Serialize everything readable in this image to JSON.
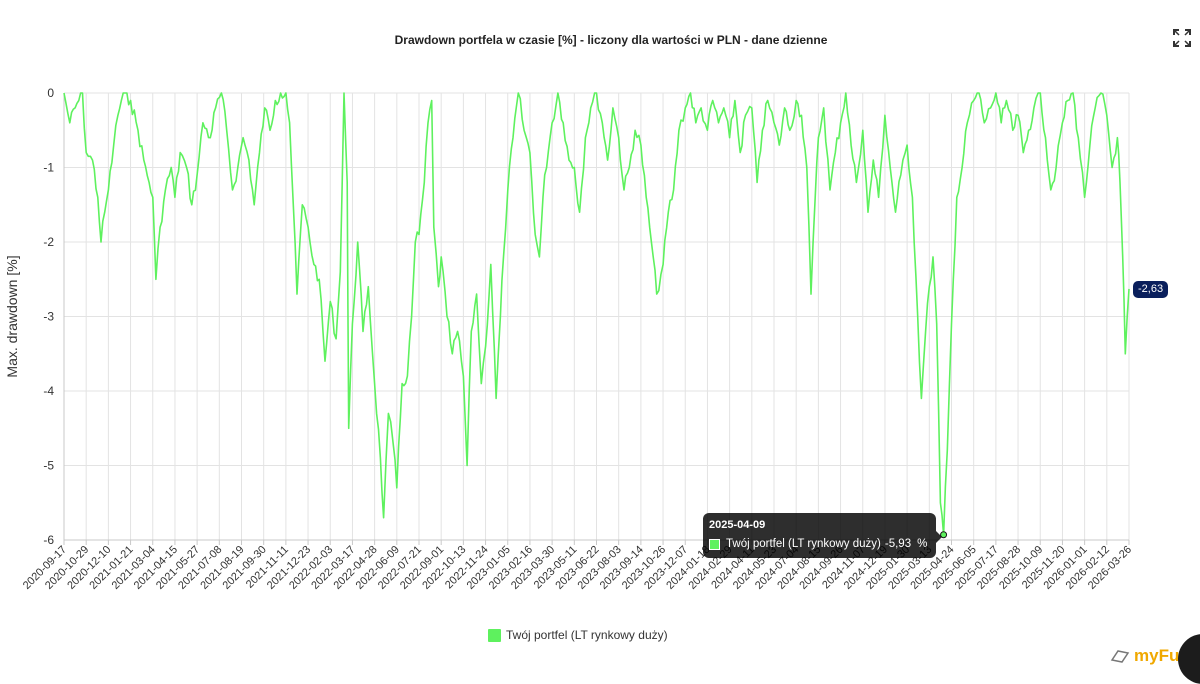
{
  "chart_data": {
    "type": "line",
    "title": "Drawdown portfela w czasie [%] - liczony dla wartości w PLN - dane dzienne",
    "ylabel": "Max. drawdown [%]",
    "xlabel": "",
    "ylim": [
      -6,
      0
    ],
    "yticks": [
      "0",
      "-1",
      "-2",
      "-3",
      "-4",
      "-5",
      "-6"
    ],
    "grid": true,
    "legend_position": "bottom-center",
    "x_tick_labels": [
      "2020-09-17",
      "2020-10-29",
      "2020-12-10",
      "2021-01-21",
      "2021-03-04",
      "2021-04-15",
      "2021-05-27",
      "2021-07-08",
      "2021-08-19",
      "2021-09-30",
      "2021-11-11",
      "2021-12-23",
      "2022-02-03",
      "2022-03-17",
      "2022-04-28",
      "2022-06-09",
      "2022-07-21",
      "2022-09-01",
      "2022-10-13",
      "2022-11-24",
      "2023-01-05",
      "2023-02-16",
      "2023-03-30",
      "2023-05-11",
      "2023-06-22",
      "2023-08-03",
      "2023-09-14",
      "2023-10-26",
      "2023-12-07",
      "2024-01-18",
      "2024-02-29",
      "2024-04-11",
      "2024-05-23",
      "2024-07-04",
      "2024-08-15",
      "2024-09-26",
      "2024-11-07",
      "2024-12-19",
      "2025-01-30",
      "2025-03-13",
      "2025-04-24",
      "2025-06-05",
      "2025-07-17",
      "2025-08-28",
      "2025-10-09",
      "2025-11-20",
      "2026-01-01",
      "2026-02-12",
      "2026-03-26"
    ],
    "series": [
      {
        "name": "Twój portfel (LT rynkowy duży)",
        "color": "#5ef15e",
        "points": [
          [
            "2020-09-17",
            0
          ],
          [
            "2020-09-28",
            -0.4
          ],
          [
            "2020-10-08",
            -0.2
          ],
          [
            "2020-10-22",
            0
          ],
          [
            "2020-10-29",
            -0.8
          ],
          [
            "2020-11-10",
            -0.9
          ],
          [
            "2020-11-20",
            -1.4
          ],
          [
            "2020-11-26",
            -2.0
          ],
          [
            "2020-12-03",
            -1.6
          ],
          [
            "2020-12-10",
            -1.3
          ],
          [
            "2020-12-20",
            -0.7
          ],
          [
            "2020-12-28",
            -0.3
          ],
          [
            "2021-01-07",
            0
          ],
          [
            "2021-01-21",
            -0.1
          ],
          [
            "2021-02-04",
            -0.5
          ],
          [
            "2021-02-15",
            -0.9
          ],
          [
            "2021-02-25",
            -1.2
          ],
          [
            "2021-03-04",
            -1.4
          ],
          [
            "2021-03-10",
            -2.5
          ],
          [
            "2021-03-18",
            -1.8
          ],
          [
            "2021-03-28",
            -1.3
          ],
          [
            "2021-04-08",
            -1.0
          ],
          [
            "2021-04-15",
            -1.4
          ],
          [
            "2021-04-25",
            -0.8
          ],
          [
            "2021-05-07",
            -1.0
          ],
          [
            "2021-05-17",
            -1.5
          ],
          [
            "2021-05-27",
            -1.1
          ],
          [
            "2021-06-07",
            -0.4
          ],
          [
            "2021-06-21",
            -0.6
          ],
          [
            "2021-07-01",
            -0.2
          ],
          [
            "2021-07-12",
            0
          ],
          [
            "2021-07-22",
            -0.5
          ],
          [
            "2021-08-02",
            -1.3
          ],
          [
            "2021-08-12",
            -1.0
          ],
          [
            "2021-08-22",
            -0.6
          ],
          [
            "2021-09-02",
            -0.9
          ],
          [
            "2021-09-12",
            -1.5
          ],
          [
            "2021-09-22",
            -0.8
          ],
          [
            "2021-10-02",
            -0.2
          ],
          [
            "2021-10-12",
            -0.5
          ],
          [
            "2021-10-22",
            -0.1
          ],
          [
            "2021-11-01",
            0
          ],
          [
            "2021-11-11",
            0
          ],
          [
            "2021-11-18",
            -0.4
          ],
          [
            "2021-11-25",
            -1.5
          ],
          [
            "2021-12-02",
            -2.7
          ],
          [
            "2021-12-12",
            -1.5
          ],
          [
            "2021-12-23",
            -1.8
          ],
          [
            "2022-01-03",
            -2.3
          ],
          [
            "2022-01-13",
            -2.5
          ],
          [
            "2022-01-24",
            -3.6
          ],
          [
            "2022-02-03",
            -2.8
          ],
          [
            "2022-02-14",
            -3.3
          ],
          [
            "2022-02-22",
            -2.4
          ],
          [
            "2022-03-01",
            0
          ],
          [
            "2022-03-07",
            -1.2
          ],
          [
            "2022-03-10",
            -4.5
          ],
          [
            "2022-03-17",
            -3.1
          ],
          [
            "2022-03-27",
            -2.0
          ],
          [
            "2022-04-06",
            -3.2
          ],
          [
            "2022-04-16",
            -2.6
          ],
          [
            "2022-04-28",
            -3.9
          ],
          [
            "2022-05-09",
            -4.9
          ],
          [
            "2022-05-15",
            -5.7
          ],
          [
            "2022-05-24",
            -4.3
          ],
          [
            "2022-06-02",
            -4.7
          ],
          [
            "2022-06-09",
            -5.3
          ],
          [
            "2022-06-19",
            -3.9
          ],
          [
            "2022-06-29",
            -3.8
          ],
          [
            "2022-07-07",
            -3.0
          ],
          [
            "2022-07-14",
            -2.0
          ],
          [
            "2022-07-21",
            -1.9
          ],
          [
            "2022-07-31",
            -1.2
          ],
          [
            "2022-08-07",
            -0.4
          ],
          [
            "2022-08-14",
            -0.1
          ],
          [
            "2022-08-18",
            -1.8
          ],
          [
            "2022-08-27",
            -2.6
          ],
          [
            "2022-09-01",
            -2.2
          ],
          [
            "2022-09-12",
            -3.0
          ],
          [
            "2022-09-22",
            -3.5
          ],
          [
            "2022-10-02",
            -3.2
          ],
          [
            "2022-10-13",
            -3.8
          ],
          [
            "2022-10-20",
            -5.0
          ],
          [
            "2022-10-28",
            -3.2
          ],
          [
            "2022-11-07",
            -2.7
          ],
          [
            "2022-11-16",
            -3.9
          ],
          [
            "2022-11-24",
            -3.4
          ],
          [
            "2022-12-04",
            -2.3
          ],
          [
            "2022-12-14",
            -4.1
          ],
          [
            "2022-12-22",
            -3.0
          ],
          [
            "2022-12-28",
            -2.2
          ],
          [
            "2023-01-05",
            -1.3
          ],
          [
            "2023-01-15",
            -0.6
          ],
          [
            "2023-01-25",
            0
          ],
          [
            "2023-02-05",
            -0.5
          ],
          [
            "2023-02-16",
            -0.8
          ],
          [
            "2023-02-26",
            -1.9
          ],
          [
            "2023-03-06",
            -2.2
          ],
          [
            "2023-03-16",
            -1.1
          ],
          [
            "2023-03-30",
            -0.4
          ],
          [
            "2023-04-10",
            0
          ],
          [
            "2023-04-20",
            -0.4
          ],
          [
            "2023-05-01",
            -0.9
          ],
          [
            "2023-05-11",
            -1.0
          ],
          [
            "2023-05-21",
            -1.6
          ],
          [
            "2023-06-01",
            -0.6
          ],
          [
            "2023-06-11",
            -0.2
          ],
          [
            "2023-06-22",
            0
          ],
          [
            "2023-07-03",
            -0.4
          ],
          [
            "2023-07-13",
            -0.9
          ],
          [
            "2023-07-23",
            -0.2
          ],
          [
            "2023-08-03",
            -0.6
          ],
          [
            "2023-08-13",
            -1.3
          ],
          [
            "2023-08-23",
            -1.0
          ],
          [
            "2023-09-03",
            -0.5
          ],
          [
            "2023-09-14",
            -0.7
          ],
          [
            "2023-09-24",
            -1.4
          ],
          [
            "2023-10-04",
            -2.0
          ],
          [
            "2023-10-14",
            -2.7
          ],
          [
            "2023-10-26",
            -2.3
          ],
          [
            "2023-11-05",
            -1.6
          ],
          [
            "2023-11-15",
            -1.3
          ],
          [
            "2023-11-25",
            -0.5
          ],
          [
            "2023-12-07",
            -0.2
          ],
          [
            "2023-12-17",
            0
          ],
          [
            "2023-12-27",
            -0.4
          ],
          [
            "2024-01-06",
            -0.2
          ],
          [
            "2024-01-18",
            -0.5
          ],
          [
            "2024-01-28",
            -0.1
          ],
          [
            "2024-02-08",
            -0.4
          ],
          [
            "2024-02-18",
            -0.2
          ],
          [
            "2024-02-29",
            -0.6
          ],
          [
            "2024-03-10",
            -0.1
          ],
          [
            "2024-03-20",
            -0.8
          ],
          [
            "2024-03-30",
            -0.3
          ],
          [
            "2024-04-11",
            -0.2
          ],
          [
            "2024-04-21",
            -1.2
          ],
          [
            "2024-05-01",
            -0.5
          ],
          [
            "2024-05-11",
            -0.1
          ],
          [
            "2024-05-23",
            -0.4
          ],
          [
            "2024-06-02",
            -0.7
          ],
          [
            "2024-06-12",
            -0.2
          ],
          [
            "2024-06-22",
            -0.5
          ],
          [
            "2024-07-04",
            -0.1
          ],
          [
            "2024-07-14",
            -0.3
          ],
          [
            "2024-07-24",
            -1.0
          ],
          [
            "2024-08-01",
            -2.7
          ],
          [
            "2024-08-09",
            -1.4
          ],
          [
            "2024-08-15",
            -0.6
          ],
          [
            "2024-08-25",
            -0.2
          ],
          [
            "2024-09-06",
            -1.3
          ],
          [
            "2024-09-16",
            -0.8
          ],
          [
            "2024-09-26",
            -0.4
          ],
          [
            "2024-10-06",
            0
          ],
          [
            "2024-10-16",
            -0.7
          ],
          [
            "2024-10-26",
            -1.2
          ],
          [
            "2024-11-07",
            -0.5
          ],
          [
            "2024-11-17",
            -1.6
          ],
          [
            "2024-11-27",
            -0.9
          ],
          [
            "2024-12-07",
            -1.4
          ],
          [
            "2024-12-19",
            -0.3
          ],
          [
            "2024-12-29",
            -1.0
          ],
          [
            "2025-01-08",
            -1.6
          ],
          [
            "2025-01-18",
            -1.1
          ],
          [
            "2025-01-30",
            -0.7
          ],
          [
            "2025-02-09",
            -1.4
          ],
          [
            "2025-02-19",
            -3.0
          ],
          [
            "2025-02-26",
            -4.1
          ],
          [
            "2025-03-06",
            -3.2
          ],
          [
            "2025-03-13",
            -2.6
          ],
          [
            "2025-03-20",
            -2.2
          ],
          [
            "2025-03-27",
            -3.1
          ],
          [
            "2025-04-03",
            -5.5
          ],
          [
            "2025-04-09",
            -5.93
          ],
          [
            "2025-04-16",
            -4.8
          ],
          [
            "2025-04-24",
            -3.1
          ],
          [
            "2025-05-04",
            -1.4
          ],
          [
            "2025-05-14",
            -1.0
          ],
          [
            "2025-05-24",
            -0.4
          ],
          [
            "2025-06-05",
            -0.1
          ],
          [
            "2025-06-15",
            0
          ],
          [
            "2025-06-25",
            -0.4
          ],
          [
            "2025-07-07",
            -0.2
          ],
          [
            "2025-07-17",
            0
          ],
          [
            "2025-07-27",
            -0.4
          ],
          [
            "2025-08-06",
            -0.1
          ],
          [
            "2025-08-18",
            -0.5
          ],
          [
            "2025-08-28",
            -0.3
          ],
          [
            "2025-09-07",
            -0.8
          ],
          [
            "2025-09-17",
            -0.5
          ],
          [
            "2025-09-27",
            -0.2
          ],
          [
            "2025-10-09",
            0
          ],
          [
            "2025-10-19",
            -0.6
          ],
          [
            "2025-10-29",
            -1.3
          ],
          [
            "2025-11-08",
            -1.0
          ],
          [
            "2025-11-20",
            -0.4
          ],
          [
            "2025-11-30",
            -0.1
          ],
          [
            "2025-12-10",
            0
          ],
          [
            "2025-12-20",
            -0.6
          ],
          [
            "2026-01-01",
            -1.4
          ],
          [
            "2026-01-11",
            -0.7
          ],
          [
            "2026-01-21",
            -0.2
          ],
          [
            "2026-02-01",
            0
          ],
          [
            "2026-02-12",
            -0.3
          ],
          [
            "2026-02-22",
            -1.0
          ],
          [
            "2026-03-04",
            -0.6
          ],
          [
            "2026-03-09",
            -1.2
          ],
          [
            "2026-03-14",
            -2.2
          ],
          [
            "2026-03-19",
            -3.5
          ],
          [
            "2026-03-26",
            -2.63
          ]
        ]
      }
    ]
  },
  "tooltip": {
    "date": "2025-04-09",
    "series_name": "Twój portfel (LT rynkowy duży)",
    "value": "-5,93",
    "unit": "%"
  },
  "last_value_label": "-2,63",
  "brand": {
    "name": "myFun"
  },
  "icons": {
    "expand": "expand-icon",
    "brand_mark": "brand-mark-icon"
  }
}
